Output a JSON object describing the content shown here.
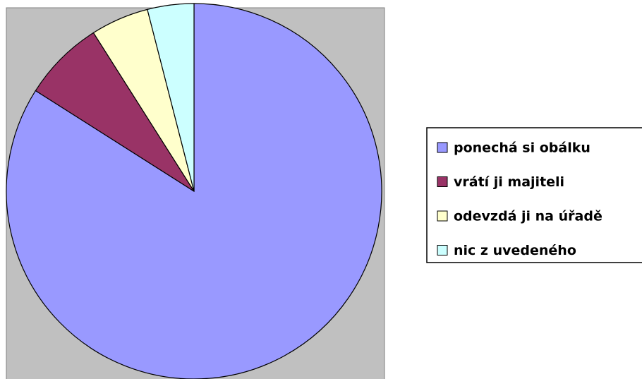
{
  "chart_data": {
    "type": "pie",
    "categories": [
      "ponechá si obálku",
      "vrátí ji majiteli",
      "odevzdá ji na úřadě",
      "nic z uvedeného"
    ],
    "values": [
      84,
      7,
      5,
      4
    ],
    "colors": [
      "#9999ff",
      "#993366",
      "#ffffcc",
      "#ccffff"
    ],
    "legend": "right"
  }
}
